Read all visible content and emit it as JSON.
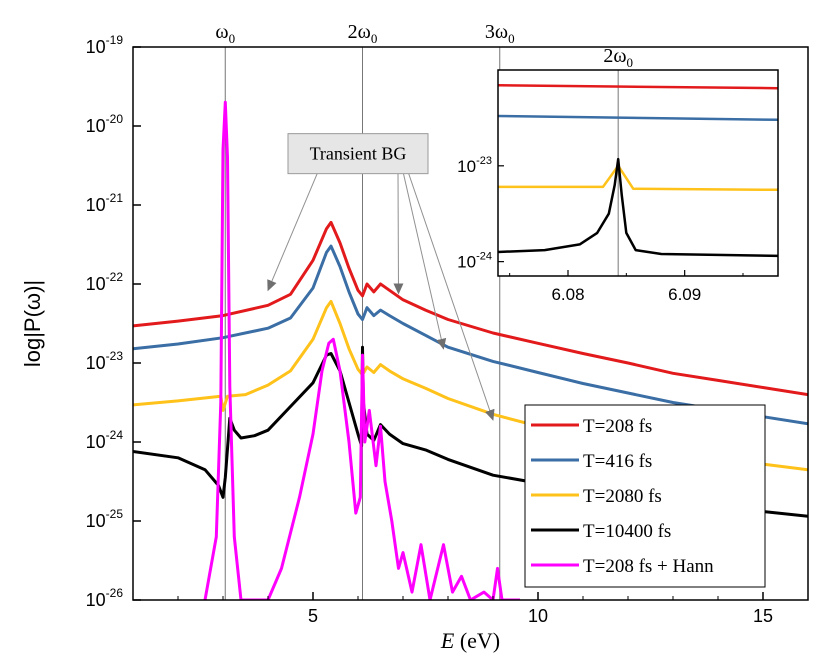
{
  "chart_data": [
    {
      "type": "line",
      "ylabel": "log|P(ω)|",
      "xlabel_italic": "E",
      "xlabel_unit": " (eV)",
      "yscale": "log",
      "xlim": [
        1,
        16
      ],
      "ylim_exp": [
        -26,
        -19
      ],
      "xticks": [
        {
          "value": 5,
          "label": "5"
        },
        {
          "value": 10,
          "label": "10"
        },
        {
          "value": 15,
          "label": "15"
        }
      ],
      "yticks": [
        {
          "exp": -19,
          "base": "10",
          "sup": "-19"
        },
        {
          "exp": -20,
          "base": "10",
          "sup": "-20"
        },
        {
          "exp": -21,
          "base": "10",
          "sup": "-21"
        },
        {
          "exp": -22,
          "base": "10",
          "sup": "-22"
        },
        {
          "exp": -23,
          "base": "10",
          "sup": "-23"
        },
        {
          "exp": -24,
          "base": "10",
          "sup": "-24"
        },
        {
          "exp": -25,
          "base": "10",
          "sup": "-25"
        },
        {
          "exp": -26,
          "base": "10",
          "sup": "-26"
        }
      ],
      "vlines": [
        {
          "x": 3.05,
          "label_pre": "ω",
          "label_sub": "0"
        },
        {
          "x": 6.1,
          "label_pre": "2ω",
          "label_sub": "0"
        },
        {
          "x": 9.15,
          "label_pre": "3ω",
          "label_sub": "0"
        }
      ],
      "annotation": {
        "text": "Transient BG",
        "box_at": {
          "x": 6.0,
          "exp": -20.35
        },
        "arrows_to": [
          {
            "x": 4.0,
            "exp": -22.08
          },
          {
            "x": 6.9,
            "exp": -22.12
          },
          {
            "x": 7.9,
            "exp": -22.82
          },
          {
            "x": 9.0,
            "exp": -23.72
          }
        ]
      },
      "series": [
        {
          "name": "T=208 fs",
          "color": "#e31a1c",
          "points": [
            [
              1,
              -22.53
            ],
            [
              2,
              -22.47
            ],
            [
              3,
              -22.4
            ],
            [
              4,
              -22.27
            ],
            [
              4.5,
              -22.13
            ],
            [
              5,
              -21.7
            ],
            [
              5.3,
              -21.3
            ],
            [
              5.4,
              -21.22
            ],
            [
              5.6,
              -21.48
            ],
            [
              5.8,
              -21.8
            ],
            [
              6.0,
              -22.08
            ],
            [
              6.1,
              -22.15
            ],
            [
              6.2,
              -22.0
            ],
            [
              6.35,
              -22.1
            ],
            [
              6.5,
              -22.0
            ],
            [
              6.7,
              -22.08
            ],
            [
              7.0,
              -22.2
            ],
            [
              7.5,
              -22.33
            ],
            [
              8,
              -22.45
            ],
            [
              9,
              -22.62
            ],
            [
              10,
              -22.75
            ],
            [
              11,
              -22.88
            ],
            [
              12,
              -23.0
            ],
            [
              13,
              -23.13
            ],
            [
              14,
              -23.22
            ],
            [
              15,
              -23.31
            ],
            [
              16,
              -23.4
            ]
          ]
        },
        {
          "name": "T=416 fs",
          "color": "#3a6ea5",
          "points": [
            [
              1,
              -22.82
            ],
            [
              2,
              -22.76
            ],
            [
              3,
              -22.68
            ],
            [
              4,
              -22.56
            ],
            [
              4.5,
              -22.43
            ],
            [
              5,
              -22.05
            ],
            [
              5.3,
              -21.6
            ],
            [
              5.4,
              -21.52
            ],
            [
              5.6,
              -21.78
            ],
            [
              5.8,
              -22.1
            ],
            [
              6.0,
              -22.38
            ],
            [
              6.1,
              -22.45
            ],
            [
              6.2,
              -22.3
            ],
            [
              6.35,
              -22.4
            ],
            [
              6.5,
              -22.33
            ],
            [
              6.7,
              -22.4
            ],
            [
              7.0,
              -22.5
            ],
            [
              7.5,
              -22.65
            ],
            [
              8,
              -22.8
            ],
            [
              9,
              -22.98
            ],
            [
              10,
              -23.12
            ],
            [
              11,
              -23.26
            ],
            [
              12,
              -23.38
            ],
            [
              13,
              -23.5
            ],
            [
              14,
              -23.59
            ],
            [
              15,
              -23.68
            ],
            [
              16,
              -23.77
            ]
          ]
        },
        {
          "name": "T=2080 fs",
          "color": "#ffc21a",
          "points": [
            [
              1,
              -23.53
            ],
            [
              2,
              -23.48
            ],
            [
              2.95,
              -23.42
            ],
            [
              3.0,
              -23.6
            ],
            [
              3.1,
              -23.42
            ],
            [
              3.5,
              -23.4
            ],
            [
              4,
              -23.28
            ],
            [
              4.5,
              -23.1
            ],
            [
              5,
              -22.7
            ],
            [
              5.3,
              -22.3
            ],
            [
              5.4,
              -22.22
            ],
            [
              5.6,
              -22.5
            ],
            [
              5.8,
              -22.82
            ],
            [
              6.0,
              -23.08
            ],
            [
              6.1,
              -23.15
            ],
            [
              6.2,
              -23.05
            ],
            [
              6.35,
              -23.12
            ],
            [
              6.5,
              -23.02
            ],
            [
              6.7,
              -23.1
            ],
            [
              7.0,
              -23.2
            ],
            [
              7.5,
              -23.32
            ],
            [
              8,
              -23.45
            ],
            [
              9,
              -23.65
            ],
            [
              10,
              -23.8
            ],
            [
              11,
              -23.92
            ],
            [
              12,
              -24.02
            ],
            [
              13,
              -24.12
            ],
            [
              14,
              -24.2
            ],
            [
              15,
              -24.28
            ],
            [
              16,
              -24.35
            ]
          ]
        },
        {
          "name": "T=10400 fs",
          "color": "#000000",
          "points": [
            [
              1,
              -24.12
            ],
            [
              2,
              -24.2
            ],
            [
              2.6,
              -24.35
            ],
            [
              2.9,
              -24.55
            ],
            [
              3.0,
              -24.7
            ],
            [
              3.05,
              -24.45
            ],
            [
              3.15,
              -23.7
            ],
            [
              3.25,
              -23.85
            ],
            [
              3.4,
              -23.95
            ],
            [
              3.7,
              -23.92
            ],
            [
              4,
              -23.85
            ],
            [
              4.5,
              -23.55
            ],
            [
              5,
              -23.25
            ],
            [
              5.3,
              -22.9
            ],
            [
              5.4,
              -22.88
            ],
            [
              5.6,
              -23.1
            ],
            [
              5.8,
              -23.5
            ],
            [
              6.0,
              -23.9
            ],
            [
              6.08,
              -24.05
            ],
            [
              6.1,
              -22.8
            ],
            [
              6.12,
              -23.5
            ],
            [
              6.2,
              -23.9
            ],
            [
              6.35,
              -23.98
            ],
            [
              6.5,
              -23.78
            ],
            [
              6.7,
              -23.9
            ],
            [
              7,
              -24.02
            ],
            [
              7.5,
              -24.1
            ],
            [
              8,
              -24.22
            ],
            [
              9,
              -24.42
            ],
            [
              10,
              -24.52
            ],
            [
              11,
              -24.6
            ],
            [
              12,
              -24.68
            ],
            [
              13,
              -24.75
            ],
            [
              14,
              -24.82
            ],
            [
              15,
              -24.88
            ],
            [
              16,
              -24.94
            ]
          ]
        },
        {
          "name": "T=208 fs + Hann",
          "color": "#ff00ff",
          "points": [
            [
              2.6,
              -26.0
            ],
            [
              2.85,
              -25.2
            ],
            [
              2.95,
              -23.5
            ],
            [
              3.0,
              -20.3
            ],
            [
              3.05,
              -19.7
            ],
            [
              3.1,
              -20.4
            ],
            [
              3.15,
              -23.3
            ],
            [
              3.25,
              -25.2
            ],
            [
              3.4,
              -26.0
            ],
            [
              4.0,
              -26.0
            ],
            [
              4.3,
              -25.6
            ],
            [
              4.7,
              -24.7
            ],
            [
              5.0,
              -23.9
            ],
            [
              5.2,
              -23.1
            ],
            [
              5.35,
              -22.75
            ],
            [
              5.45,
              -22.7
            ],
            [
              5.6,
              -23.1
            ],
            [
              5.8,
              -24.0
            ],
            [
              5.95,
              -24.9
            ],
            [
              6.05,
              -24.7
            ],
            [
              6.1,
              -22.9
            ],
            [
              6.15,
              -24.0
            ],
            [
              6.25,
              -23.6
            ],
            [
              6.4,
              -24.3
            ],
            [
              6.5,
              -23.8
            ],
            [
              6.6,
              -24.5
            ],
            [
              6.75,
              -25.0
            ],
            [
              6.9,
              -25.6
            ],
            [
              7.0,
              -25.4
            ],
            [
              7.2,
              -25.9
            ],
            [
              7.4,
              -25.3
            ],
            [
              7.6,
              -26.0
            ],
            [
              7.9,
              -25.3
            ],
            [
              8.1,
              -25.9
            ],
            [
              8.3,
              -25.7
            ],
            [
              8.5,
              -26.0
            ],
            [
              8.8,
              -25.9
            ],
            [
              9.0,
              -26.0
            ],
            [
              9.1,
              -25.6
            ],
            [
              9.2,
              -26.0
            ],
            [
              9.6,
              -26.0
            ]
          ]
        }
      ],
      "legend": {
        "placement": "bottom-right",
        "entries": [
          "T=208 fs",
          "T=416 fs",
          "T=2080 fs",
          "T=10400 fs",
          "T=208 fs + Hann"
        ]
      }
    },
    {
      "type": "line",
      "title_pre": "2ω",
      "title_sub": "0",
      "yscale": "log",
      "xlim": [
        6.074,
        6.098
      ],
      "ylim_exp": [
        -24.15,
        -22.0
      ],
      "xticks": [
        {
          "value": 6.08,
          "label": "6.08"
        },
        {
          "value": 6.09,
          "label": "6.09"
        }
      ],
      "yticks": [
        {
          "exp": -23,
          "base": "10",
          "sup": "-23"
        },
        {
          "exp": -24,
          "base": "10",
          "sup": "-24"
        }
      ],
      "vline_x": 6.0843,
      "series": [
        {
          "name": "T=208 fs",
          "color": "#e31a1c",
          "points": [
            [
              6.074,
              -22.16
            ],
            [
              6.098,
              -22.19
            ]
          ]
        },
        {
          "name": "T=416 fs",
          "color": "#3a6ea5",
          "points": [
            [
              6.074,
              -22.48
            ],
            [
              6.098,
              -22.52
            ]
          ]
        },
        {
          "name": "T=2080 fs",
          "color": "#ffc21a",
          "points": [
            [
              6.074,
              -23.22
            ],
            [
              6.083,
              -23.22
            ],
            [
              6.0843,
              -23.0
            ],
            [
              6.0856,
              -23.24
            ],
            [
              6.098,
              -23.25
            ]
          ]
        },
        {
          "name": "T=10400 fs",
          "color": "#000000",
          "points": [
            [
              6.074,
              -23.9
            ],
            [
              6.078,
              -23.88
            ],
            [
              6.081,
              -23.82
            ],
            [
              6.0825,
              -23.7
            ],
            [
              6.0835,
              -23.5
            ],
            [
              6.084,
              -23.2
            ],
            [
              6.0843,
              -22.93
            ],
            [
              6.0846,
              -23.3
            ],
            [
              6.085,
              -23.7
            ],
            [
              6.0858,
              -23.88
            ],
            [
              6.088,
              -23.92
            ],
            [
              6.098,
              -23.94
            ]
          ]
        }
      ]
    }
  ]
}
